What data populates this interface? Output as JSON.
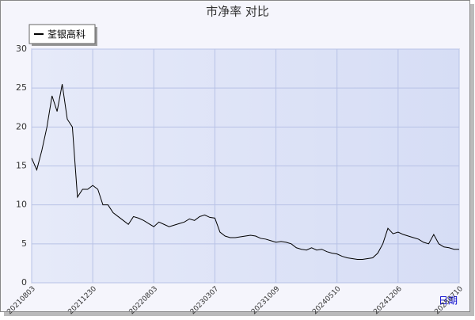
{
  "chart_data": {
    "type": "line",
    "title": "市净率  对比",
    "x_label": "日期",
    "categories": [
      "20210803",
      null,
      null,
      null,
      null,
      null,
      null,
      null,
      null,
      null,
      null,
      null,
      "20211230",
      null,
      null,
      null,
      null,
      null,
      null,
      null,
      null,
      null,
      null,
      null,
      "20220803",
      null,
      null,
      null,
      null,
      null,
      null,
      null,
      null,
      null,
      null,
      null,
      "20230307",
      null,
      null,
      null,
      null,
      null,
      null,
      null,
      null,
      null,
      null,
      null,
      "20231009",
      null,
      null,
      null,
      null,
      null,
      null,
      null,
      null,
      null,
      null,
      null,
      "20240510",
      null,
      null,
      null,
      null,
      null,
      null,
      null,
      null,
      null,
      null,
      null,
      "20241206",
      null,
      null,
      null,
      null,
      null,
      null,
      null,
      null,
      null,
      null,
      null,
      "20250710"
    ],
    "series": [
      {
        "name": "荃银高科",
        "color": "#000000",
        "values": [
          16,
          14.5,
          17,
          20,
          24,
          22,
          25.5,
          21,
          20,
          11,
          12,
          12,
          12.5,
          12,
          10,
          10,
          9,
          8.5,
          8,
          7.5,
          8.5,
          8.3,
          8,
          7.6,
          7.2,
          7.8,
          7.5,
          7.2,
          7.4,
          7.6,
          7.8,
          8.2,
          8,
          8.5,
          8.7,
          8.4,
          8.3,
          6.5,
          6,
          5.8,
          5.8,
          5.9,
          6,
          6.1,
          6,
          5.7,
          5.6,
          5.4,
          5.2,
          5.3,
          5.2,
          5,
          4.5,
          4.3,
          4.2,
          4.5,
          4.2,
          4.3,
          4,
          3.8,
          3.7,
          3.4,
          3.2,
          3.1,
          3,
          3,
          3.1,
          3.2,
          3.8,
          5,
          7,
          6.3,
          6.5,
          6.2,
          6,
          5.8,
          5.6,
          5.2,
          5,
          6.2,
          5,
          4.6,
          4.5,
          4.3,
          4.3
        ]
      }
    ],
    "ylim": [
      0,
      30
    ],
    "yticks": [
      0,
      5,
      10,
      15,
      20,
      25,
      30
    ],
    "grid": true,
    "legend": "top-left"
  }
}
